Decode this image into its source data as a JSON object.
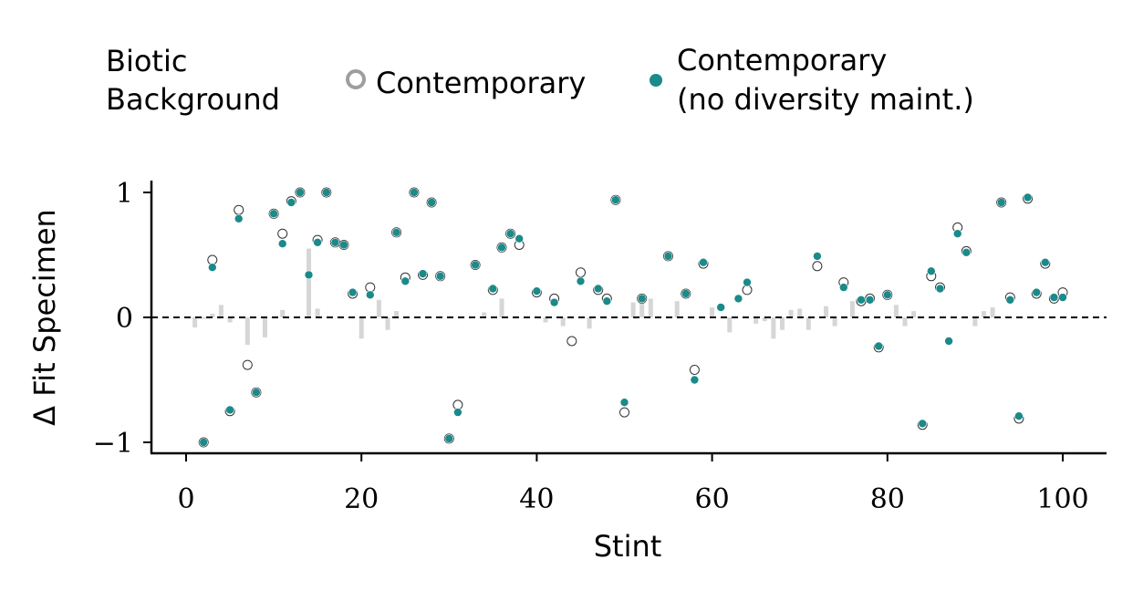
{
  "legend": {
    "title_lines": [
      "Biotic",
      "Background"
    ],
    "entries": [
      {
        "label_lines": [
          "Contemporary"
        ],
        "style": "hollow",
        "color": "#9e9e9e"
      },
      {
        "label_lines": [
          "Contemporary",
          "(no diversity maint.)"
        ],
        "style": "filled",
        "color": "#1a8a8a"
      }
    ]
  },
  "chart_data": {
    "type": "scatter",
    "xlabel": "Stint",
    "ylabel": "Δ Fit Specimen",
    "xlim": [
      -4,
      105
    ],
    "ylim": [
      -1.1,
      1.1
    ],
    "xticks": [
      0,
      20,
      40,
      60,
      80,
      100
    ],
    "yticks": [
      {
        "value": -1,
        "label": "−1"
      },
      {
        "value": 0,
        "label": "0"
      },
      {
        "value": 1,
        "label": "1"
      }
    ],
    "reference_line": {
      "y": 0,
      "style": "dashed",
      "color": "#000000"
    },
    "colors": {
      "filled": "#1a8a8a",
      "hollow_edge": "#333333",
      "bar": "#d6d6d6"
    },
    "series": [
      {
        "name": "Contemporary",
        "marker": "hollow",
        "points": [
          [
            2,
            -1.0
          ],
          [
            3,
            0.46
          ],
          [
            5,
            -0.75
          ],
          [
            6,
            0.86
          ],
          [
            7,
            -0.38
          ],
          [
            8,
            -0.6
          ],
          [
            10,
            0.83
          ],
          [
            11,
            0.67
          ],
          [
            12,
            0.93
          ],
          [
            13,
            1.0
          ],
          [
            15,
            0.62
          ],
          [
            16,
            1.0
          ],
          [
            17,
            0.6
          ],
          [
            18,
            0.58
          ],
          [
            19,
            0.19
          ],
          [
            21,
            0.24
          ],
          [
            24,
            0.68
          ],
          [
            25,
            0.32
          ],
          [
            26,
            1.0
          ],
          [
            27,
            0.34
          ],
          [
            28,
            0.92
          ],
          [
            29,
            0.33
          ],
          [
            30,
            -0.97
          ],
          [
            31,
            -0.7
          ],
          [
            33,
            0.42
          ],
          [
            35,
            0.22
          ],
          [
            36,
            0.56
          ],
          [
            37,
            0.67
          ],
          [
            38,
            0.58
          ],
          [
            40,
            0.2
          ],
          [
            42,
            0.15
          ],
          [
            44,
            -0.19
          ],
          [
            45,
            0.36
          ],
          [
            47,
            0.22
          ],
          [
            48,
            0.15
          ],
          [
            49,
            0.94
          ],
          [
            50,
            -0.76
          ],
          [
            52,
            0.15
          ],
          [
            55,
            0.49
          ],
          [
            57,
            0.19
          ],
          [
            58,
            -0.42
          ],
          [
            59,
            0.43
          ],
          [
            64,
            0.22
          ],
          [
            72,
            0.41
          ],
          [
            75,
            0.28
          ],
          [
            77,
            0.13
          ],
          [
            78,
            0.15
          ],
          [
            79,
            -0.24
          ],
          [
            80,
            0.18
          ],
          [
            84,
            -0.86
          ],
          [
            85,
            0.33
          ],
          [
            86,
            0.24
          ],
          [
            88,
            0.72
          ],
          [
            89,
            0.53
          ],
          [
            93,
            0.92
          ],
          [
            94,
            0.16
          ],
          [
            95,
            -0.81
          ],
          [
            96,
            0.95
          ],
          [
            97,
            0.19
          ],
          [
            98,
            0.43
          ],
          [
            99,
            0.15
          ],
          [
            100,
            0.2
          ]
        ]
      },
      {
        "name": "Contemporary\n(no diversity maint.)",
        "marker": "filled",
        "points": [
          [
            2,
            -1.0
          ],
          [
            3,
            0.4
          ],
          [
            5,
            -0.74
          ],
          [
            6,
            0.79
          ],
          [
            8,
            -0.6
          ],
          [
            10,
            0.83
          ],
          [
            11,
            0.59
          ],
          [
            12,
            0.92
          ],
          [
            13,
            1.0
          ],
          [
            14,
            0.34
          ],
          [
            15,
            0.6
          ],
          [
            16,
            1.0
          ],
          [
            17,
            0.6
          ],
          [
            18,
            0.58
          ],
          [
            19,
            0.2
          ],
          [
            21,
            0.18
          ],
          [
            24,
            0.68
          ],
          [
            25,
            0.29
          ],
          [
            26,
            1.0
          ],
          [
            27,
            0.35
          ],
          [
            28,
            0.92
          ],
          [
            29,
            0.33
          ],
          [
            30,
            -0.97
          ],
          [
            31,
            -0.76
          ],
          [
            33,
            0.42
          ],
          [
            35,
            0.23
          ],
          [
            36,
            0.56
          ],
          [
            37,
            0.67
          ],
          [
            38,
            0.63
          ],
          [
            40,
            0.21
          ],
          [
            42,
            0.12
          ],
          [
            45,
            0.29
          ],
          [
            47,
            0.23
          ],
          [
            48,
            0.13
          ],
          [
            49,
            0.94
          ],
          [
            50,
            -0.68
          ],
          [
            52,
            0.15
          ],
          [
            55,
            0.49
          ],
          [
            57,
            0.19
          ],
          [
            58,
            -0.5
          ],
          [
            59,
            0.44
          ],
          [
            61,
            0.08
          ],
          [
            63,
            0.15
          ],
          [
            64,
            0.28
          ],
          [
            72,
            0.49
          ],
          [
            75,
            0.24
          ],
          [
            77,
            0.14
          ],
          [
            78,
            0.14
          ],
          [
            79,
            -0.23
          ],
          [
            80,
            0.18
          ],
          [
            84,
            -0.85
          ],
          [
            85,
            0.37
          ],
          [
            86,
            0.23
          ],
          [
            87,
            -0.19
          ],
          [
            88,
            0.67
          ],
          [
            89,
            0.52
          ],
          [
            93,
            0.92
          ],
          [
            94,
            0.14
          ],
          [
            95,
            -0.79
          ],
          [
            96,
            0.96
          ],
          [
            97,
            0.2
          ],
          [
            98,
            0.44
          ],
          [
            99,
            0.16
          ],
          [
            100,
            0.16
          ]
        ]
      }
    ],
    "difference_bars": [
      [
        1,
        -0.08
      ],
      [
        2,
        0.0
      ],
      [
        3,
        0.03
      ],
      [
        4,
        0.1
      ],
      [
        5,
        -0.04
      ],
      [
        7,
        -0.22
      ],
      [
        9,
        -0.16
      ],
      [
        11,
        0.06
      ],
      [
        14,
        0.55
      ],
      [
        15,
        0.07
      ],
      [
        20,
        -0.17
      ],
      [
        22,
        0.14
      ],
      [
        23,
        -0.1
      ],
      [
        24,
        0.05
      ],
      [
        34,
        0.04
      ],
      [
        36,
        0.15
      ],
      [
        41,
        -0.04
      ],
      [
        43,
        -0.07
      ],
      [
        46,
        -0.09
      ],
      [
        51,
        0.12
      ],
      [
        52,
        0.15
      ],
      [
        53,
        0.15
      ],
      [
        56,
        0.13
      ],
      [
        60,
        0.08
      ],
      [
        62,
        -0.12
      ],
      [
        65,
        -0.05
      ],
      [
        66,
        -0.03
      ],
      [
        67,
        -0.17
      ],
      [
        68,
        -0.1
      ],
      [
        69,
        0.06
      ],
      [
        70,
        0.07
      ],
      [
        71,
        -0.1
      ],
      [
        73,
        0.09
      ],
      [
        74,
        -0.07
      ],
      [
        76,
        0.13
      ],
      [
        81,
        0.1
      ],
      [
        82,
        -0.07
      ],
      [
        83,
        0.05
      ],
      [
        90,
        -0.07
      ],
      [
        91,
        0.05
      ],
      [
        92,
        0.08
      ]
    ]
  }
}
